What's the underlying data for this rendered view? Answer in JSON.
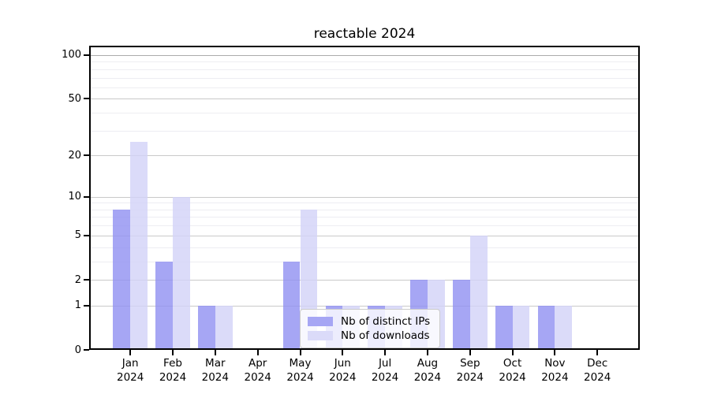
{
  "title": "reactable 2024",
  "chart_data": {
    "type": "bar",
    "title": "reactable 2024",
    "xlabel": "",
    "ylabel": "",
    "yscale": "log1p",
    "ylim": [
      0,
      116
    ],
    "grid": "on",
    "legend_position": "inside-bottom-center",
    "categories": [
      "Jan 2024",
      "Feb 2024",
      "Mar 2024",
      "Apr 2024",
      "May 2024",
      "Jun 2024",
      "Jul 2024",
      "Aug 2024",
      "Sep 2024",
      "Oct 2024",
      "Nov 2024",
      "Dec 2024"
    ],
    "x_tick_month_labels": [
      "Jan",
      "Feb",
      "Mar",
      "Apr",
      "May",
      "Jun",
      "Jul",
      "Aug",
      "Sep",
      "Oct",
      "Nov",
      "Dec"
    ],
    "x_tick_year_label": "2024",
    "yticks": [
      0,
      1,
      2,
      5,
      10,
      20,
      50,
      100
    ],
    "minor_yticks": [
      3,
      4,
      6,
      7,
      8,
      9,
      30,
      40,
      60,
      70,
      80,
      90
    ],
    "series": [
      {
        "name": "Nb of distinct IPs",
        "values": [
          8,
          3,
          1,
          0,
          3,
          1,
          1,
          2,
          2,
          1,
          1,
          0
        ],
        "bar_color": "#9292f2",
        "swatch_color": "#a6a6f4"
      },
      {
        "name": "Nb of downloads",
        "values": [
          25,
          10,
          1,
          0,
          8,
          1,
          1,
          2,
          5,
          1,
          1,
          0
        ],
        "bar_color": "#d3d3f8",
        "swatch_color": "#dbdbf9"
      }
    ],
    "colors": {
      "major_grid": "#c9c9c9",
      "top_major_grid": "#ababab",
      "minor_grid": "#ededf2",
      "axis": "#000000"
    }
  }
}
